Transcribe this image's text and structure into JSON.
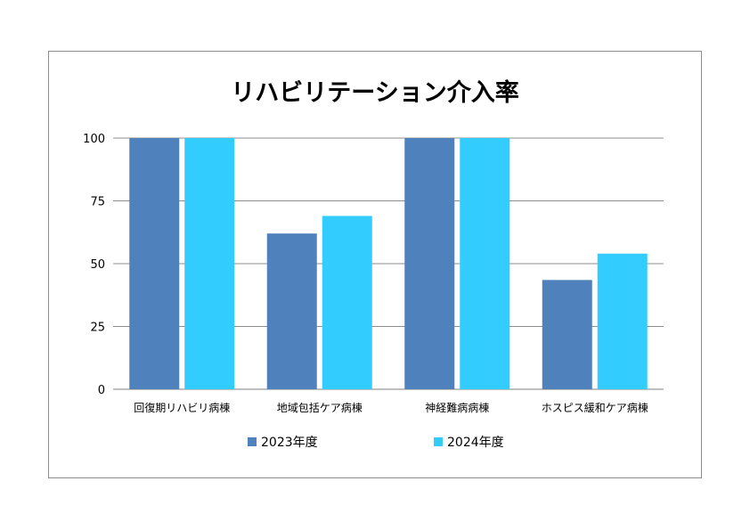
{
  "chart_data": {
    "type": "bar",
    "title": "リハビリテーション介入率",
    "categories": [
      "回復期リハビリ病棟",
      "地域包括ケア病棟",
      "神経難病病棟",
      "ホスピス緩和ケア病棟"
    ],
    "series": [
      {
        "name": "2023年度",
        "values": [
          100,
          62,
          100,
          43.5
        ],
        "color": "#4f81bd"
      },
      {
        "name": "2024年度",
        "values": [
          100,
          69,
          100,
          54
        ],
        "color": "#33ccff"
      }
    ],
    "y_ticks": [
      "0",
      "25",
      "50",
      "75",
      "100"
    ],
    "ylim": [
      0,
      100
    ],
    "grid": true,
    "legend": "bottom"
  }
}
